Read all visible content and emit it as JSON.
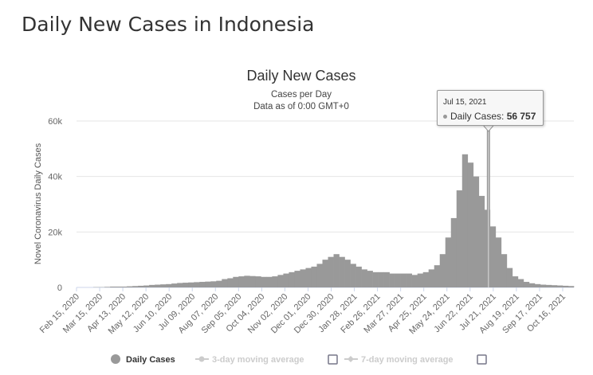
{
  "page_title": "Daily New Cases in Indonesia",
  "chart_data": {
    "type": "bar",
    "title": "Daily New Cases",
    "subtitle": "Cases per Day",
    "subtitle2": "Data as of 0:00 GMT+0",
    "ylabel": "Novel Coronavirus Daily Cases",
    "xlabel": "",
    "ylim": [
      0,
      60000
    ],
    "yticks": [
      {
        "v": 0,
        "label": "0"
      },
      {
        "v": 20000,
        "label": "20k"
      },
      {
        "v": 40000,
        "label": "40k"
      },
      {
        "v": 60000,
        "label": "60k"
      }
    ],
    "x_start": "2020-02-15",
    "x_end": "2021-10-30",
    "xtick_dates": [
      "2020-02-15",
      "2020-03-15",
      "2020-04-13",
      "2020-05-12",
      "2020-06-10",
      "2020-07-09",
      "2020-08-07",
      "2020-09-05",
      "2020-10-04",
      "2020-11-02",
      "2020-12-01",
      "2020-12-30",
      "2021-01-28",
      "2021-02-26",
      "2021-03-27",
      "2021-04-25",
      "2021-05-24",
      "2021-06-22",
      "2021-07-21",
      "2021-08-19",
      "2021-09-17",
      "2021-10-16"
    ],
    "xtick_labels": [
      "Feb 15, 2020",
      "Mar 15, 2020",
      "Apr 13, 2020",
      "May 12, 2020",
      "Jun 10, 2020",
      "Jul 09, 2020",
      "Aug 07, 2020",
      "Sep 05, 2020",
      "Oct 04, 2020",
      "Nov 02, 2020",
      "Dec 01, 2020",
      "Dec 30, 2020",
      "Jan 28, 2021",
      "Feb 26, 2021",
      "Mar 27, 2021",
      "Apr 25, 2021",
      "May 24, 2021",
      "Jun 22, 2021",
      "Jul 21, 2021",
      "Aug 19, 2021",
      "Sep 17, 2021",
      "Oct 16, 2021"
    ],
    "series": [
      {
        "name": "Daily Cases",
        "color": "#999999",
        "step_days": 7,
        "start": "2020-02-15",
        "values": [
          0,
          0,
          0,
          100,
          100,
          200,
          300,
          300,
          300,
          400,
          500,
          600,
          700,
          900,
          1000,
          1100,
          1200,
          1400,
          1600,
          1700,
          1800,
          1900,
          2000,
          2100,
          2200,
          2400,
          3000,
          3300,
          3800,
          4000,
          4200,
          4100,
          4000,
          3800,
          3800,
          4000,
          4500,
          5000,
          5500,
          6000,
          6500,
          7000,
          7500,
          8500,
          10000,
          11000,
          12000,
          11000,
          10000,
          8500,
          7500,
          6500,
          6000,
          5500,
          5500,
          5500,
          5000,
          5000,
          5000,
          5000,
          4500,
          5000,
          5500,
          6500,
          8000,
          12000,
          18000,
          25000,
          35000,
          48000,
          45000,
          40000,
          33000,
          28000,
          22000,
          18000,
          12000,
          7000,
          4000,
          3000,
          2000,
          1500,
          1200,
          1000,
          900,
          800,
          700,
          600,
          500
        ]
      }
    ],
    "highlight": {
      "date": "2021-07-15",
      "date_label": "Jul 15, 2021",
      "series": "Daily Cases",
      "value": 56757,
      "value_label": "56 757"
    },
    "legend": {
      "placement": "bottom",
      "items": [
        {
          "label": "Daily Cases",
          "active": true
        },
        {
          "label": "3-day moving average",
          "active": false
        },
        {
          "label": "7-day moving average",
          "active": false
        }
      ]
    }
  }
}
